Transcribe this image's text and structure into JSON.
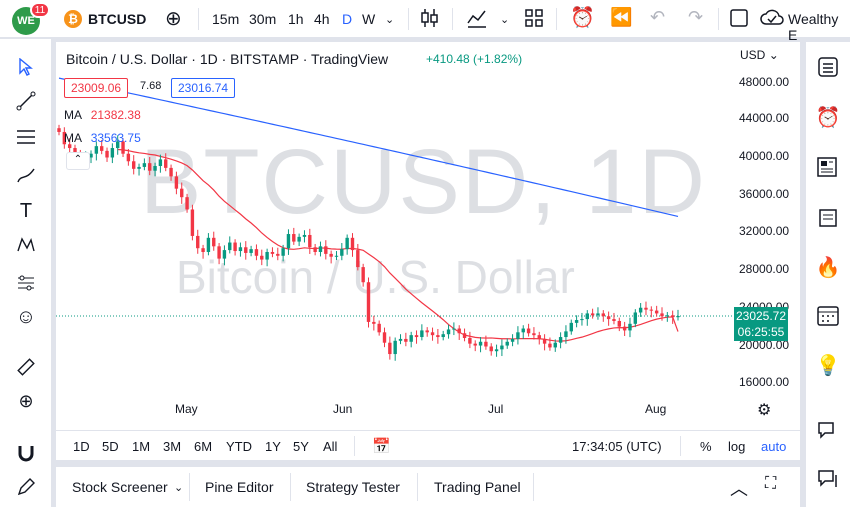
{
  "header": {
    "logo_text": "WE",
    "notification_count": "11",
    "symbol": "BTCUSD",
    "intervals": [
      "15m",
      "30m",
      "1h",
      "4h",
      "D",
      "W"
    ],
    "active_interval": "D",
    "account": "Wealthy E"
  },
  "legend": {
    "title": "Bitcoin / U.S. Dollar · 1D · BITSTAMP · TradingView",
    "change": "+410.48 (+1.82%)",
    "bid": "23009.06",
    "spread": "7.68",
    "ask": "23016.74",
    "ma1_label": "MA",
    "ma1_value": "21382.38",
    "ma2_label": "MA",
    "ma2_value": "33563.75"
  },
  "watermark": {
    "line1": "BTCUSD, 1D",
    "line2": "Bitcoin / U.S. Dollar"
  },
  "axis": {
    "currency": "USD",
    "y_ticks": [
      "48000.00",
      "44000.00",
      "40000.00",
      "36000.00",
      "32000.00",
      "28000.00",
      "24000.00",
      "20000.00",
      "16000.00"
    ],
    "x_ticks": [
      "May",
      "Jun",
      "Jul",
      "Aug"
    ]
  },
  "current_price": {
    "value": "23025.72",
    "countdown": "06:25:55"
  },
  "range_bar": {
    "ranges": [
      "1D",
      "5D",
      "1M",
      "3M",
      "6M",
      "YTD",
      "1Y",
      "5Y",
      "All"
    ],
    "time": "17:34:05 (UTC)",
    "percent": "%",
    "log": "log",
    "auto": "auto"
  },
  "bottom_tabs": [
    "Stock Screener",
    "Pine Editor",
    "Strategy Tester",
    "Trading Panel"
  ],
  "colors": {
    "up": "#089981",
    "down": "#f23645",
    "ma_fast": "#f23645",
    "ma_slow": "#2962ff",
    "accent": "#2962ff"
  },
  "chart_data": {
    "type": "candlestick",
    "y_range": [
      15000,
      49000
    ],
    "ma_fast_end": 21382.38,
    "ma_slow_end": 33563.75,
    "current_price": 23025.72,
    "closes": [
      42500,
      41200,
      40800,
      40100,
      39500,
      39800,
      40200,
      41000,
      40500,
      39800,
      40800,
      41500,
      40200,
      39400,
      38600,
      38800,
      39200,
      38400,
      38900,
      39600,
      38700,
      37800,
      36500,
      35600,
      34300,
      31500,
      30200,
      29800,
      31300,
      30400,
      29100,
      30000,
      30800,
      29900,
      30300,
      29700,
      30100,
      29400,
      29000,
      29800,
      29600,
      29400,
      30200,
      31700,
      30900,
      31400,
      31600,
      30300,
      29800,
      30400,
      29600,
      29300,
      29400,
      30100,
      31300,
      30000,
      28200,
      26600,
      22400,
      22200,
      21300,
      20200,
      19000,
      20400,
      20600,
      20300,
      21000,
      20800,
      21500,
      21300,
      21000,
      20800,
      21100,
      21600,
      21700,
      21200,
      20700,
      20100,
      19900,
      20300,
      19800,
      19300,
      19500,
      19900,
      20300,
      20600,
      21300,
      21700,
      21200,
      21000,
      20600,
      20100,
      19700,
      20200,
      20800,
      21400,
      22300,
      22600,
      22700,
      23300,
      23100,
      23300,
      23000,
      22700,
      22500,
      21900,
      21500,
      22200,
      23400,
      23900,
      23700,
      23600,
      23300,
      23000,
      23100,
      22900,
      23025.72
    ]
  }
}
